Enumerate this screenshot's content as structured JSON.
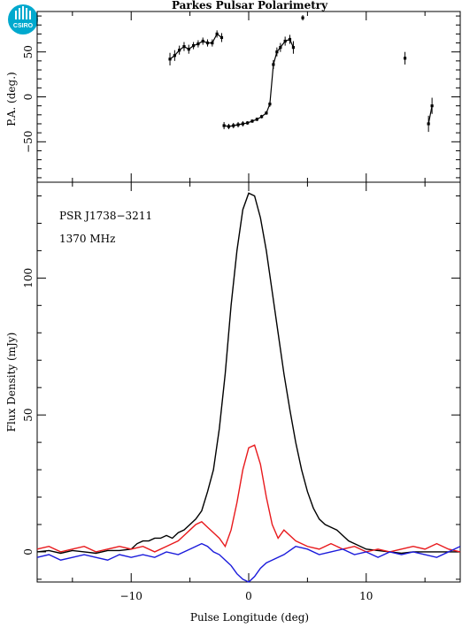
{
  "title": "Parkes Pulsar Polarimetry",
  "logo_text": "CSIRO",
  "source_label": "PSR J1738−3211",
  "frequency_label": "1370 MHz",
  "colors": {
    "total": "#000000",
    "linear": "#e8191c",
    "circular": "#1a1adb",
    "logo": "#00a9ce"
  },
  "chart_data": [
    {
      "type": "scatter",
      "ylabel": "P.A. (deg.)",
      "xlim": [
        -18,
        18
      ],
      "ylim": [
        -95,
        95
      ],
      "yticks": [
        -50,
        0,
        50
      ],
      "points": [
        [
          -6.7,
          42,
          7
        ],
        [
          -6.3,
          46,
          6
        ],
        [
          -5.9,
          52,
          5
        ],
        [
          -5.5,
          56,
          5
        ],
        [
          -5.1,
          53,
          5
        ],
        [
          -4.7,
          57,
          4
        ],
        [
          -4.3,
          59,
          4
        ],
        [
          -3.9,
          62,
          4
        ],
        [
          -3.5,
          60,
          4
        ],
        [
          -3.1,
          60,
          4
        ],
        [
          -2.7,
          70,
          4
        ],
        [
          -2.3,
          66,
          5
        ],
        [
          -2.1,
          -32,
          4
        ],
        [
          -1.7,
          -33,
          3
        ],
        [
          -1.3,
          -32,
          3
        ],
        [
          -0.9,
          -31,
          3
        ],
        [
          -0.5,
          -30,
          3
        ],
        [
          -0.1,
          -29,
          2
        ],
        [
          0.3,
          -27,
          2
        ],
        [
          0.7,
          -25,
          2
        ],
        [
          1.1,
          -22,
          2
        ],
        [
          1.5,
          -18,
          2
        ],
        [
          1.8,
          -8,
          3
        ],
        [
          2.1,
          36,
          5
        ],
        [
          2.4,
          50,
          5
        ],
        [
          2.7,
          55,
          5
        ],
        [
          3.1,
          62,
          5
        ],
        [
          3.5,
          64,
          5
        ],
        [
          3.8,
          55,
          7
        ],
        [
          4.6,
          88,
          3
        ],
        [
          13.3,
          43,
          7
        ],
        [
          15.3,
          -30,
          9
        ],
        [
          15.6,
          -10,
          9
        ]
      ],
      "segments": [
        [
          [
            -6.7,
            42
          ],
          [
            -6.3,
            46
          ],
          [
            -5.9,
            52
          ],
          [
            -5.5,
            56
          ],
          [
            -5.1,
            53
          ],
          [
            -4.7,
            57
          ],
          [
            -4.3,
            59
          ],
          [
            -3.9,
            62
          ],
          [
            -3.5,
            60
          ],
          [
            -3.1,
            60
          ],
          [
            -2.7,
            70
          ],
          [
            -2.3,
            66
          ]
        ],
        [
          [
            -2.1,
            -32
          ],
          [
            -1.7,
            -33
          ],
          [
            -1.3,
            -32
          ],
          [
            -0.9,
            -31
          ],
          [
            -0.5,
            -30
          ],
          [
            -0.1,
            -29
          ],
          [
            0.3,
            -27
          ],
          [
            0.7,
            -25
          ],
          [
            1.1,
            -22
          ],
          [
            1.5,
            -18
          ],
          [
            1.8,
            -8
          ],
          [
            2.1,
            36
          ],
          [
            2.4,
            50
          ],
          [
            2.7,
            55
          ],
          [
            3.1,
            62
          ],
          [
            3.5,
            64
          ],
          [
            3.8,
            55
          ]
        ],
        [
          [
            15.3,
            -30
          ],
          [
            15.6,
            -10
          ]
        ]
      ]
    },
    {
      "type": "line",
      "xlabel": "Pulse Longitude (deg)",
      "ylabel": "Flux Density (mJy)",
      "xlim": [
        -18,
        18
      ],
      "ylim": [
        -11,
        135
      ],
      "xticks": [
        -10,
        0,
        10
      ],
      "yticks": [
        0,
        50,
        100
      ],
      "series": [
        {
          "key": "total",
          "x": [
            -18,
            -17,
            -16,
            -15,
            -14,
            -13,
            -12,
            -11,
            -10,
            -9.5,
            -9,
            -8.5,
            -8,
            -7.5,
            -7,
            -6.5,
            -6,
            -5.5,
            -5,
            -4.5,
            -4,
            -3.5,
            -3,
            -2.5,
            -2,
            -1.5,
            -1,
            -0.5,
            0,
            0.5,
            1,
            1.5,
            2,
            2.5,
            3,
            3.5,
            4,
            4.5,
            5,
            5.5,
            6,
            6.5,
            7,
            7.5,
            8,
            8.5,
            9,
            10,
            11,
            12,
            13,
            14,
            15,
            16,
            17,
            18
          ],
          "y": [
            0,
            0.5,
            -0.5,
            0.5,
            0,
            -0.5,
            0.5,
            0.5,
            1,
            3,
            4,
            4,
            5,
            5,
            6,
            5,
            7,
            8,
            10,
            12,
            15,
            22,
            30,
            45,
            65,
            90,
            110,
            125,
            131,
            130,
            122,
            110,
            95,
            80,
            65,
            52,
            40,
            30,
            22,
            16,
            12,
            10,
            9,
            8,
            6,
            4,
            3,
            1,
            0.5,
            0,
            -0.5,
            0,
            0,
            0,
            0,
            0
          ]
        },
        {
          "key": "linear",
          "x": [
            -18,
            -17,
            -16,
            -15,
            -14,
            -13,
            -12,
            -11,
            -10,
            -9,
            -8,
            -7,
            -6.5,
            -6,
            -5.5,
            -5,
            -4.5,
            -4,
            -3.5,
            -3,
            -2.5,
            -2,
            -1.5,
            -1,
            -0.5,
            0,
            0.5,
            1,
            1.5,
            2,
            2.5,
            3,
            3.5,
            4,
            5,
            6,
            7,
            8,
            9,
            10,
            11,
            12,
            13,
            14,
            15,
            16,
            17,
            18
          ],
          "y": [
            1,
            2,
            0,
            1,
            2,
            0,
            1,
            2,
            1,
            2,
            0,
            2,
            3,
            4,
            6,
            8,
            10,
            11,
            9,
            7,
            5,
            2,
            8,
            18,
            30,
            38,
            39,
            32,
            20,
            10,
            5,
            8,
            6,
            4,
            2,
            1,
            3,
            1,
            2,
            0,
            1,
            0,
            1,
            2,
            1,
            3,
            1,
            0
          ]
        },
        {
          "key": "circular",
          "x": [
            -18,
            -17,
            -16,
            -15,
            -14,
            -13,
            -12,
            -11,
            -10,
            -9,
            -8,
            -7,
            -6,
            -5,
            -4.5,
            -4,
            -3.5,
            -3,
            -2.5,
            -2,
            -1.5,
            -1,
            -0.5,
            0,
            0.5,
            1,
            1.5,
            2,
            3,
            4,
            5,
            6,
            7,
            8,
            9,
            10,
            11,
            12,
            13,
            14,
            15,
            16,
            17,
            18
          ],
          "y": [
            -2,
            -1,
            -3,
            -2,
            -1,
            -2,
            -3,
            -1,
            -2,
            -1,
            -2,
            0,
            -1,
            1,
            2,
            3,
            2,
            0,
            -1,
            -3,
            -5,
            -8,
            -10,
            -11,
            -9,
            -6,
            -4,
            -3,
            -1,
            2,
            1,
            -1,
            0,
            1,
            -1,
            0,
            -2,
            0,
            -1,
            0,
            -1,
            -2,
            0,
            2
          ]
        }
      ]
    }
  ]
}
